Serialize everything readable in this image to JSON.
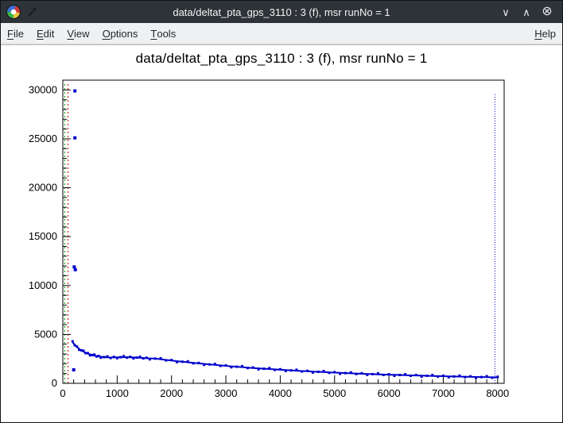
{
  "window": {
    "title": "data/deltat_pta_gps_3110 : 3 (f), msr runNo = 1",
    "controls": {
      "minimize": "∨",
      "maximize": "∧",
      "close": "⊗"
    }
  },
  "menu": {
    "items": [
      "File",
      "Edit",
      "View",
      "Options",
      "Tools"
    ],
    "help_label": "Help"
  },
  "chart_data": {
    "type": "scatter",
    "title": "data/deltat_pta_gps_3110 : 3 (f), msr runNo = 1",
    "xlabel": "",
    "ylabel": "",
    "xlim": [
      0,
      8120
    ],
    "ylim": [
      0,
      31000
    ],
    "x_ticks": [
      0,
      1000,
      2000,
      3000,
      4000,
      5000,
      6000,
      7000,
      8000
    ],
    "y_ticks": [
      0,
      5000,
      10000,
      15000,
      20000,
      25000,
      30000
    ],
    "x_minor_step": 200,
    "y_minor_step": 1000,
    "grid": false,
    "marker_color": "#0000cc",
    "outliers": [
      [
        222,
        29900
      ],
      [
        222,
        25100
      ],
      [
        210,
        11900
      ],
      [
        230,
        11620
      ],
      [
        200,
        1380
      ]
    ],
    "band": [
      [
        180,
        4200
      ],
      [
        220,
        3940
      ],
      [
        260,
        3710
      ],
      [
        300,
        3530
      ],
      [
        340,
        3370
      ],
      [
        380,
        3240
      ],
      [
        420,
        3130
      ],
      [
        460,
        3040
      ],
      [
        500,
        2960
      ],
      [
        540,
        2890
      ],
      [
        580,
        2840
      ],
      [
        620,
        2790
      ],
      [
        660,
        2755
      ],
      [
        700,
        2720
      ],
      [
        760,
        2680
      ],
      [
        820,
        2655
      ],
      [
        880,
        2640
      ],
      [
        940,
        2650
      ],
      [
        1000,
        2665
      ],
      [
        1060,
        2670
      ],
      [
        1120,
        2680
      ],
      [
        1180,
        2670
      ],
      [
        1240,
        2660
      ],
      [
        1300,
        2645
      ],
      [
        1360,
        2630
      ],
      [
        1420,
        2610
      ],
      [
        1480,
        2590
      ],
      [
        1540,
        2570
      ],
      [
        1600,
        2550
      ],
      [
        1700,
        2530
      ],
      [
        1800,
        2460
      ],
      [
        1900,
        2395
      ],
      [
        2000,
        2330
      ],
      [
        2100,
        2265
      ],
      [
        2200,
        2210
      ],
      [
        2300,
        2150
      ],
      [
        2400,
        2090
      ],
      [
        2500,
        2040
      ],
      [
        2600,
        1985
      ],
      [
        2700,
        1930
      ],
      [
        2800,
        1880
      ],
      [
        2900,
        1830
      ],
      [
        3000,
        1785
      ],
      [
        3100,
        1740
      ],
      [
        3200,
        1700
      ],
      [
        3300,
        1655
      ],
      [
        3400,
        1610
      ],
      [
        3500,
        1570
      ],
      [
        3600,
        1530
      ],
      [
        3700,
        1495
      ],
      [
        3800,
        1460
      ],
      [
        3900,
        1425
      ],
      [
        4000,
        1390
      ],
      [
        4100,
        1355
      ],
      [
        4200,
        1320
      ],
      [
        4300,
        1290
      ],
      [
        4400,
        1260
      ],
      [
        4500,
        1230
      ],
      [
        4600,
        1200
      ],
      [
        4700,
        1175
      ],
      [
        4800,
        1150
      ],
      [
        4900,
        1120
      ],
      [
        5000,
        1095
      ],
      [
        5100,
        1070
      ],
      [
        5200,
        1045
      ],
      [
        5300,
        1020
      ],
      [
        5400,
        1000
      ],
      [
        5500,
        980
      ],
      [
        5600,
        960
      ],
      [
        5700,
        940
      ],
      [
        5800,
        920
      ],
      [
        5900,
        900
      ],
      [
        6000,
        880
      ],
      [
        6100,
        865
      ],
      [
        6200,
        850
      ],
      [
        6300,
        830
      ],
      [
        6400,
        815
      ],
      [
        6500,
        800
      ],
      [
        6600,
        785
      ],
      [
        6700,
        770
      ],
      [
        6800,
        755
      ],
      [
        6900,
        740
      ],
      [
        7000,
        730
      ],
      [
        7100,
        715
      ],
      [
        7200,
        700
      ],
      [
        7300,
        690
      ],
      [
        7400,
        675
      ],
      [
        7500,
        665
      ],
      [
        7600,
        650
      ],
      [
        7700,
        640
      ],
      [
        7800,
        630
      ],
      [
        7900,
        620
      ],
      [
        8000,
        610
      ]
    ],
    "vlines": [
      {
        "name": "t0-line",
        "x": 35,
        "color": "#009900",
        "dash": "2 3",
        "y0": 0,
        "y1": 30600
      },
      {
        "name": "first-good-bin-line",
        "x": 95,
        "color": "#cc0000",
        "dash": "2 3",
        "y0": 0,
        "y1": 30600
      },
      {
        "name": "last-good-bin-line",
        "x": 7950,
        "color": "#0000cc",
        "dash": "1 2",
        "y0": 0,
        "y1": 29600
      }
    ],
    "axis_color": "#000000",
    "background": "#ffffff"
  }
}
